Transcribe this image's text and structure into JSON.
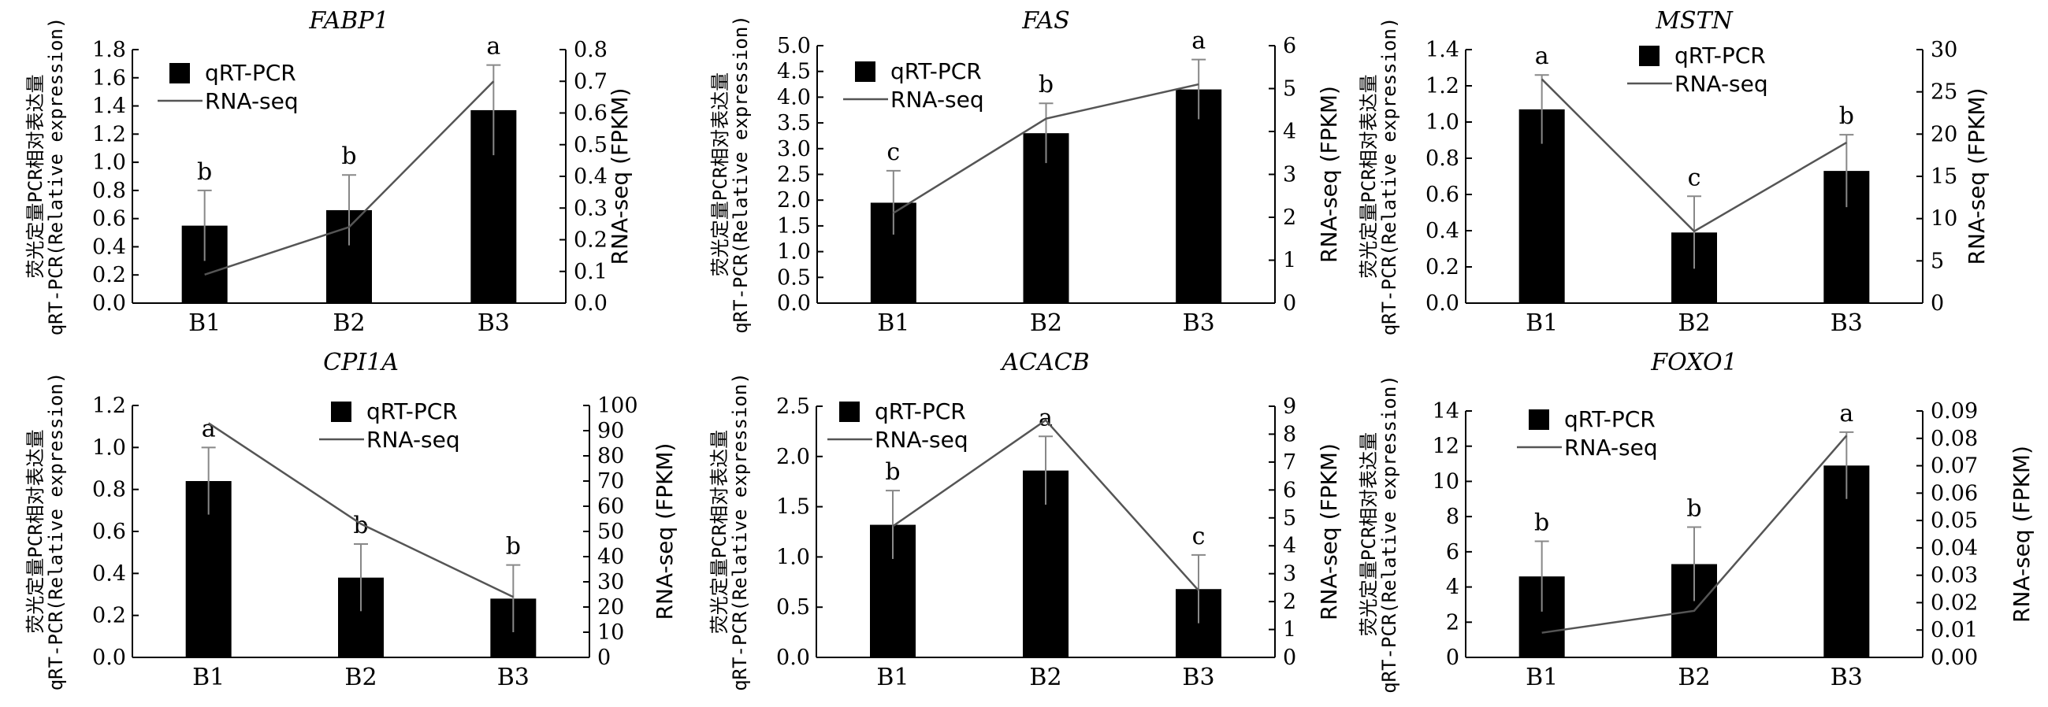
{
  "legend": {
    "bar_label": "qRT-PCR",
    "line_label": "RNA-seq"
  },
  "axis_titles": {
    "y_left_line1": "荧光定量PCR相对表达量",
    "y_left_line2": "qRT-PCR(Relative expression)",
    "y_right": "RNA-seq (FPKM)"
  },
  "colors": {
    "bar": "#000000",
    "line": "#555555",
    "error": "#888888"
  },
  "chart_data": [
    {
      "type": "bar",
      "title": "FABP1",
      "categories": [
        "B1",
        "B2",
        "B3"
      ],
      "series": [
        {
          "name": "qRT-PCR",
          "values": [
            0.55,
            0.66,
            1.37
          ],
          "errors": [
            0.25,
            0.25,
            0.32
          ]
        },
        {
          "name": "RNA-seq",
          "axis": "right",
          "values": [
            0.09,
            0.24,
            0.7
          ]
        }
      ],
      "sig": [
        "b",
        "b",
        "a"
      ],
      "ylim": [
        0,
        1.8
      ],
      "yticks": [
        "0.0",
        "0.2",
        "0.4",
        "0.6",
        "0.8",
        "1.0",
        "1.2",
        "1.4",
        "1.6",
        "1.8"
      ],
      "y2lim": [
        0,
        0.8
      ],
      "y2ticks": [
        "0.0",
        "0.1",
        "0.2",
        "0.3",
        "0.4",
        "0.5",
        "0.6",
        "0.7",
        "0.8"
      ]
    },
    {
      "type": "bar",
      "title": "FAS",
      "categories": [
        "B1",
        "B2",
        "B3"
      ],
      "series": [
        {
          "name": "qRT-PCR",
          "values": [
            1.95,
            3.3,
            4.15
          ],
          "errors": [
            0.62,
            0.58,
            0.58
          ]
        },
        {
          "name": "RNA-seq",
          "axis": "right",
          "values": [
            2.1,
            4.3,
            5.1
          ]
        }
      ],
      "sig": [
        "c",
        "b",
        "a"
      ],
      "ylim": [
        0,
        5.0
      ],
      "yticks": [
        "0.0",
        "0.5",
        "1.0",
        "1.5",
        "2.0",
        "2.5",
        "3.0",
        "3.5",
        "4.0",
        "4.5",
        "5.0"
      ],
      "y2lim": [
        0,
        6
      ],
      "y2ticks": [
        "0",
        "1",
        "2",
        "3",
        "4",
        "5",
        "6"
      ]
    },
    {
      "type": "bar",
      "title": "MSTN",
      "categories": [
        "B1",
        "B2",
        "B3"
      ],
      "series": [
        {
          "name": "qRT-PCR",
          "values": [
            1.07,
            0.39,
            0.73
          ],
          "errors": [
            0.19,
            0.2,
            0.2
          ]
        },
        {
          "name": "RNA-seq",
          "axis": "right",
          "values": [
            26.5,
            8.5,
            19
          ]
        }
      ],
      "sig": [
        "a",
        "c",
        "b"
      ],
      "ylim": [
        0,
        1.4
      ],
      "yticks": [
        "0.0",
        "0.2",
        "0.4",
        "0.6",
        "0.8",
        "1.0",
        "1.2",
        "1.4"
      ],
      "y2lim": [
        0,
        30
      ],
      "y2ticks": [
        "0",
        "5",
        "10",
        "15",
        "20",
        "25",
        "30"
      ]
    },
    {
      "type": "bar",
      "title": "CPI1A",
      "categories": [
        "B1",
        "B2",
        "B3"
      ],
      "series": [
        {
          "name": "qRT-PCR",
          "values": [
            0.84,
            0.38,
            0.28
          ],
          "errors": [
            0.16,
            0.16,
            0.16
          ]
        },
        {
          "name": "RNA-seq",
          "axis": "right",
          "values": [
            93,
            53,
            24
          ]
        }
      ],
      "sig": [
        "a",
        "b",
        "b"
      ],
      "ylim": [
        0,
        1.2
      ],
      "yticks": [
        "0.0",
        "0.2",
        "0.4",
        "0.6",
        "0.8",
        "1.0",
        "1.2"
      ],
      "y2lim": [
        0,
        100
      ],
      "y2ticks": [
        "0",
        "10",
        "20",
        "30",
        "40",
        "50",
        "60",
        "70",
        "80",
        "90",
        "100"
      ]
    },
    {
      "type": "bar",
      "title": "ACACB",
      "categories": [
        "B1",
        "B2",
        "B3"
      ],
      "series": [
        {
          "name": "qRT-PCR",
          "values": [
            1.32,
            1.86,
            0.68
          ],
          "errors": [
            0.34,
            0.34,
            0.34
          ]
        },
        {
          "name": "RNA-seq",
          "axis": "right",
          "values": [
            4.7,
            8.5,
            2.4
          ]
        }
      ],
      "sig": [
        "b",
        "a",
        "c"
      ],
      "ylim": [
        0,
        2.5
      ],
      "yticks": [
        "0.0",
        "0.5",
        "1.0",
        "1.5",
        "2.0",
        "2.5"
      ],
      "y2lim": [
        0,
        9
      ],
      "y2ticks": [
        "0",
        "1",
        "2",
        "3",
        "4",
        "5",
        "6",
        "7",
        "8",
        "9"
      ]
    },
    {
      "type": "bar",
      "title": "FOXO1",
      "categories": [
        "B1",
        "B2",
        "B3"
      ],
      "series": [
        {
          "name": "qRT-PCR",
          "values": [
            4.6,
            5.3,
            10.9
          ],
          "errors": [
            2.0,
            2.1,
            1.9
          ]
        },
        {
          "name": "RNA-seq",
          "axis": "right",
          "values": [
            0.009,
            0.017,
            0.081
          ]
        }
      ],
      "sig": [
        "b",
        "b",
        "a"
      ],
      "ylim": [
        0,
        14
      ],
      "yticks": [
        "0",
        "2",
        "4",
        "6",
        "8",
        "10",
        "12",
        "14"
      ],
      "y2lim": [
        0,
        0.09
      ],
      "y2ticks": [
        "0.00",
        "0.01",
        "0.02",
        "0.03",
        "0.04",
        "0.05",
        "0.06",
        "0.07",
        "0.08",
        "0.09"
      ]
    }
  ]
}
